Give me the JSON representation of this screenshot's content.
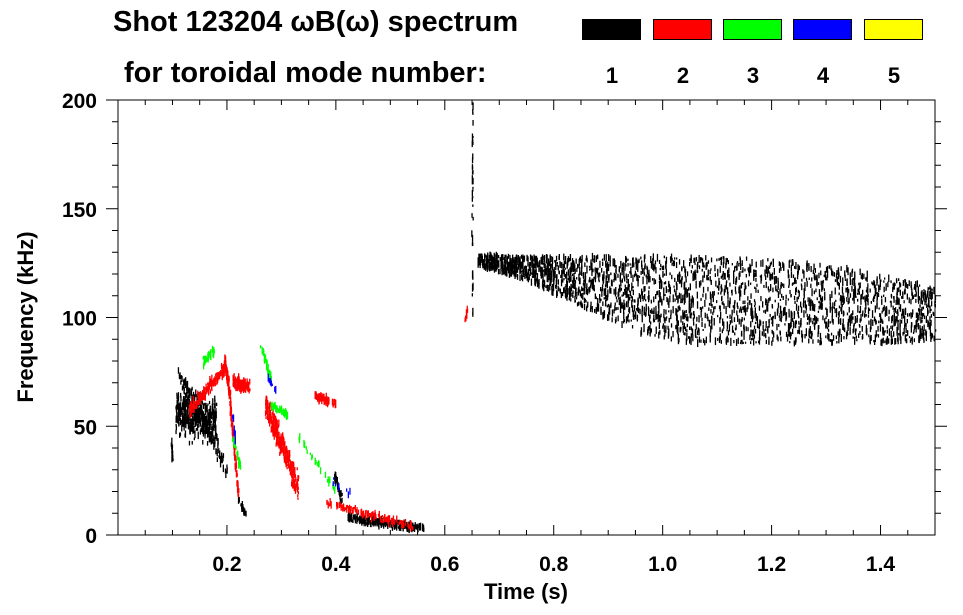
{
  "chart_data": {
    "type": "heatmap",
    "title": "Shot 123204 ωB(ω) spectrum",
    "subtitle": "for toroidal mode number:",
    "xlabel": "Time (s)",
    "ylabel": "Frequency (kHz)",
    "xlim": [
      0,
      1.5
    ],
    "ylim": [
      0,
      200
    ],
    "xticks": [
      "0.2",
      "0.4",
      "0.6",
      "0.8",
      "1.0",
      "1.2",
      "1.4"
    ],
    "xtick_values": [
      0.2,
      0.4,
      0.6,
      0.8,
      1.0,
      1.2,
      1.4
    ],
    "yticks": [
      "0",
      "50",
      "100",
      "150",
      "200"
    ],
    "ytick_values": [
      0,
      50,
      100,
      150,
      200
    ],
    "legend": [
      {
        "label": "1",
        "color": "#000000"
      },
      {
        "label": "2",
        "color": "#ff0000"
      },
      {
        "label": "3",
        "color": "#00ff00"
      },
      {
        "label": "4",
        "color": "#0000ff"
      },
      {
        "label": "5",
        "color": "#ffff00"
      }
    ],
    "legend_position": "top-right",
    "features": [
      {
        "mode": 1,
        "kind": "band",
        "t": [
          0.66,
          0.75,
          0.85,
          0.95,
          1.05,
          1.2,
          1.35,
          1.5
        ],
        "lower": [
          124,
          117,
          105,
          93,
          88,
          88,
          88,
          89
        ],
        "upper": [
          129,
          128,
          128,
          128,
          128,
          127,
          122,
          114
        ],
        "density": 2600
      },
      {
        "mode": 1,
        "kind": "stroke",
        "t0": 0.105,
        "f0": 57,
        "t1": 0.18,
        "f1": 52,
        "spread": 14,
        "density": 450
      },
      {
        "mode": 1,
        "kind": "stroke",
        "t0": 0.11,
        "f0": 75,
        "t1": 0.2,
        "f1": 30,
        "spread": 6,
        "density": 120
      },
      {
        "mode": 1,
        "kind": "stroke",
        "t0": 0.097,
        "f0": 44,
        "t1": 0.1,
        "f1": 32,
        "spread": 2,
        "density": 15
      },
      {
        "mode": 1,
        "kind": "stroke",
        "t0": 0.22,
        "f0": 16,
        "t1": 0.235,
        "f1": 9,
        "spread": 1.5,
        "density": 20
      },
      {
        "mode": 1,
        "kind": "stroke",
        "t0": 0.397,
        "f0": 27,
        "t1": 0.41,
        "f1": 16,
        "spread": 3,
        "density": 40
      },
      {
        "mode": 1,
        "kind": "stroke",
        "t0": 0.42,
        "f0": 8,
        "t1": 0.56,
        "f1": 3,
        "spread": 2.2,
        "density": 260
      },
      {
        "mode": 1,
        "kind": "stroke",
        "t0": 0.65,
        "f0": 200,
        "t1": 0.65,
        "f1": 100,
        "spread": 0.4,
        "density": 40
      },
      {
        "mode": 2,
        "kind": "stroke",
        "t0": 0.13,
        "f0": 57,
        "t1": 0.195,
        "f1": 77,
        "spread": 4,
        "density": 160
      },
      {
        "mode": 2,
        "kind": "stroke",
        "t0": 0.195,
        "f0": 80,
        "t1": 0.205,
        "f1": 64,
        "spread": 4,
        "density": 110
      },
      {
        "mode": 2,
        "kind": "stroke",
        "t0": 0.205,
        "f0": 62,
        "t1": 0.22,
        "f1": 18,
        "spread": 2.5,
        "density": 90
      },
      {
        "mode": 2,
        "kind": "stroke",
        "t0": 0.21,
        "f0": 70,
        "t1": 0.24,
        "f1": 68,
        "spread": 4,
        "density": 110
      },
      {
        "mode": 2,
        "kind": "stroke",
        "t0": 0.27,
        "f0": 60,
        "t1": 0.33,
        "f1": 22,
        "spread": 9,
        "density": 300
      },
      {
        "mode": 2,
        "kind": "stroke",
        "t0": 0.36,
        "f0": 64,
        "t1": 0.4,
        "f1": 60,
        "spread": 2.5,
        "density": 70
      },
      {
        "mode": 2,
        "kind": "stroke",
        "t0": 0.38,
        "f0": 15,
        "t1": 0.54,
        "f1": 4,
        "spread": 2,
        "density": 140
      },
      {
        "mode": 2,
        "kind": "stroke",
        "t0": 0.635,
        "f0": 97,
        "t1": 0.64,
        "f1": 104,
        "spread": 1,
        "density": 8
      },
      {
        "mode": 3,
        "kind": "stroke",
        "t0": 0.155,
        "f0": 80,
        "t1": 0.175,
        "f1": 84,
        "spread": 3,
        "density": 40
      },
      {
        "mode": 3,
        "kind": "stroke",
        "t0": 0.26,
        "f0": 88,
        "t1": 0.28,
        "f1": 72,
        "spread": 2,
        "density": 35
      },
      {
        "mode": 3,
        "kind": "stroke",
        "t0": 0.28,
        "f0": 60,
        "t1": 0.31,
        "f1": 55,
        "spread": 2,
        "density": 40
      },
      {
        "mode": 3,
        "kind": "stroke",
        "t0": 0.21,
        "f0": 45,
        "t1": 0.225,
        "f1": 30,
        "spread": 2,
        "density": 30
      },
      {
        "mode": 3,
        "kind": "stroke",
        "t0": 0.33,
        "f0": 45,
        "t1": 0.4,
        "f1": 20,
        "spread": 2,
        "density": 25
      },
      {
        "mode": 4,
        "kind": "stroke",
        "t0": 0.21,
        "f0": 55,
        "t1": 0.215,
        "f1": 42,
        "spread": 1,
        "density": 12
      },
      {
        "mode": 4,
        "kind": "stroke",
        "t0": 0.275,
        "f0": 72,
        "t1": 0.29,
        "f1": 66,
        "spread": 1,
        "density": 12
      },
      {
        "mode": 4,
        "kind": "stroke",
        "t0": 0.39,
        "f0": 25,
        "t1": 0.43,
        "f1": 18,
        "spread": 2,
        "density": 8
      }
    ]
  }
}
